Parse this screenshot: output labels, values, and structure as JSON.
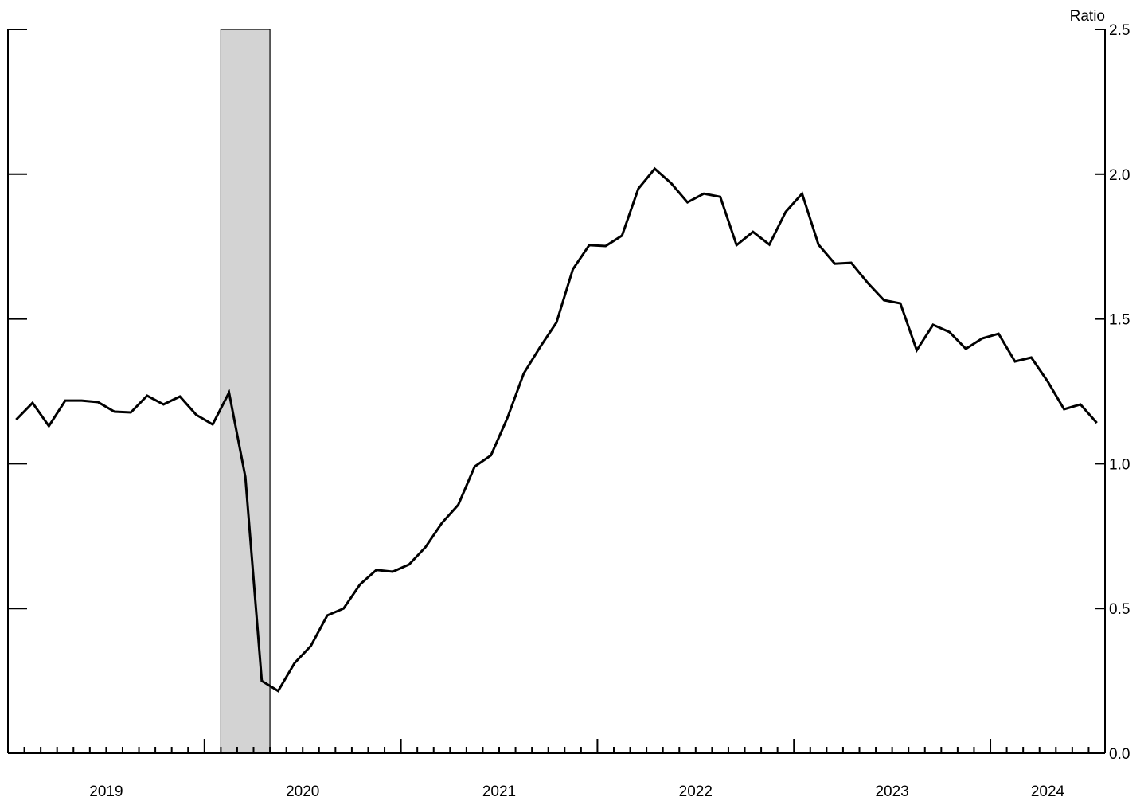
{
  "chart_data": {
    "type": "line",
    "y_label": "Ratio",
    "x": [
      "2019-01",
      "2019-02",
      "2019-03",
      "2019-04",
      "2019-05",
      "2019-06",
      "2019-07",
      "2019-08",
      "2019-09",
      "2019-10",
      "2019-11",
      "2019-12",
      "2020-01",
      "2020-02",
      "2020-03",
      "2020-04",
      "2020-05",
      "2020-06",
      "2020-07",
      "2020-08",
      "2020-09",
      "2020-10",
      "2020-11",
      "2020-12",
      "2021-01",
      "2021-02",
      "2021-03",
      "2021-04",
      "2021-05",
      "2021-06",
      "2021-07",
      "2021-08",
      "2021-09",
      "2021-10",
      "2021-11",
      "2021-12",
      "2022-01",
      "2022-02",
      "2022-03",
      "2022-04",
      "2022-05",
      "2022-06",
      "2022-07",
      "2022-08",
      "2022-09",
      "2022-10",
      "2022-11",
      "2022-12",
      "2023-01",
      "2023-02",
      "2023-03",
      "2023-04",
      "2023-05",
      "2023-06",
      "2023-07",
      "2023-08",
      "2023-09",
      "2023-10",
      "2023-11",
      "2023-12",
      "2024-01",
      "2024-02",
      "2024-03",
      "2024-04",
      "2024-05",
      "2024-06",
      "2024-07"
    ],
    "series": [
      {
        "color": "#000000",
        "values": [
          1.152,
          1.21,
          1.13,
          1.218,
          1.218,
          1.213,
          1.18,
          1.177,
          1.235,
          1.205,
          1.232,
          1.169,
          1.136,
          1.246,
          0.954,
          0.25,
          0.215,
          0.311,
          0.371,
          0.476,
          0.5,
          0.583,
          0.633,
          0.627,
          0.652,
          0.712,
          0.795,
          0.858,
          0.99,
          1.029,
          1.158,
          1.312,
          1.403,
          1.488,
          1.672,
          1.755,
          1.752,
          1.788,
          1.95,
          2.019,
          1.969,
          1.903,
          1.933,
          1.922,
          1.755,
          1.801,
          1.757,
          1.87,
          1.933,
          1.757,
          1.691,
          1.694,
          1.625,
          1.565,
          1.554,
          1.392,
          1.48,
          1.455,
          1.397,
          1.433,
          1.449,
          1.353,
          1.367,
          1.284,
          1.188,
          1.205,
          1.141
        ]
      }
    ],
    "year_labels": [
      "2019",
      "2020",
      "2021",
      "2022",
      "2023",
      "2024"
    ],
    "recessions": [
      [
        "2020-02",
        "2020-04"
      ]
    ],
    "recession_color": "#d3d3d3",
    "ylim": [
      0,
      2.5
    ],
    "yticks": [
      {
        "value": 0,
        "label": "0.0"
      },
      {
        "value": 0.5,
        "label": "0.5"
      },
      {
        "value": 1,
        "label": "1.0"
      },
      {
        "value": 1.5,
        "label": "1.5"
      },
      {
        "value": 2,
        "label": "2.0"
      },
      {
        "value": 2.5,
        "label": "2.5"
      }
    ]
  }
}
